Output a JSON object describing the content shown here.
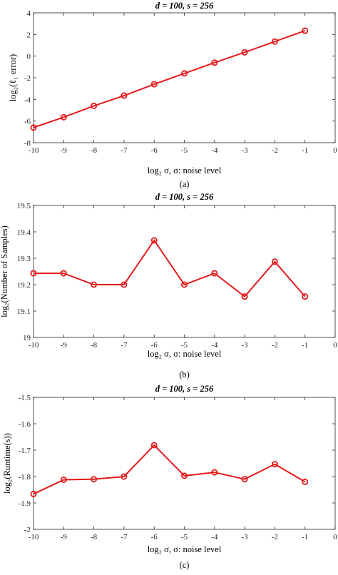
{
  "chart_data": [
    {
      "type": "line",
      "title": "d = 100, s = 256",
      "xlabel": "log₂ σ, σ: noise level",
      "ylabel": "log₂(ℓ₁ error)",
      "caption": "(a)",
      "xlim": [
        -10,
        0
      ],
      "ylim": [
        -8,
        4
      ],
      "xticks": [
        -10,
        -9,
        -8,
        -7,
        -6,
        -5,
        -4,
        -3,
        -2,
        -1,
        0
      ],
      "yticks": [
        -8,
        -6,
        -4,
        -2,
        0,
        2,
        4
      ],
      "ytick_labels": [
        "-8",
        "-6",
        "-4",
        "-2",
        "0",
        "2",
        "4"
      ],
      "series": [
        {
          "color": "#e41a1c",
          "x": [
            -10,
            -9,
            -8,
            -7,
            -6,
            -5,
            -4,
            -3,
            -2,
            -1
          ],
          "y": [
            -6.6,
            -5.65,
            -4.6,
            -3.65,
            -2.6,
            -1.6,
            -0.6,
            0.35,
            1.35,
            2.35
          ]
        }
      ]
    },
    {
      "type": "line",
      "title": "d = 100, s = 256",
      "xlabel": "log₂ σ, σ: noise level",
      "ylabel": "log₂(Number of Samples)",
      "caption": "(b)",
      "xlim": [
        -10,
        0
      ],
      "ylim": [
        19,
        19.5
      ],
      "xticks": [
        -10,
        -9,
        -8,
        -7,
        -6,
        -5,
        -4,
        -3,
        -2,
        -1,
        0
      ],
      "yticks": [
        19,
        19.1,
        19.2,
        19.3,
        19.4,
        19.5
      ],
      "ytick_labels": [
        "19",
        "19.1",
        "19.2",
        "19.3",
        "19.4",
        "19.5"
      ],
      "series": [
        {
          "color": "#e41a1c",
          "x": [
            -10,
            -9,
            -8,
            -7,
            -6,
            -5,
            -4,
            -3,
            -2,
            -1
          ],
          "y": [
            19.243,
            19.243,
            19.2,
            19.2,
            19.368,
            19.2,
            19.243,
            19.155,
            19.287,
            19.155
          ]
        }
      ]
    },
    {
      "type": "line",
      "title": "d = 100, s = 256",
      "xlabel": "log₂ σ, σ: noise level",
      "ylabel": "log₂(Runtime(s))",
      "caption": "(c)",
      "xlim": [
        -10,
        0
      ],
      "ylim": [
        -2,
        -1.5
      ],
      "xticks": [
        -10,
        -9,
        -8,
        -7,
        -6,
        -5,
        -4,
        -3,
        -2,
        -1,
        0
      ],
      "yticks": [
        -2,
        -1.9,
        -1.8,
        -1.7,
        -1.6,
        -1.5
      ],
      "ytick_labels": [
        "-2",
        "-1.9",
        "-1.8",
        "-1.7",
        "-1.6",
        "-1.5"
      ],
      "series": [
        {
          "color": "#e41a1c",
          "x": [
            -10,
            -9,
            -8,
            -7,
            -6,
            -5,
            -4,
            -3,
            -2,
            -1
          ],
          "y": [
            -1.866,
            -1.812,
            -1.81,
            -1.8,
            -1.681,
            -1.797,
            -1.784,
            -1.81,
            -1.753,
            -1.82
          ]
        }
      ]
    }
  ]
}
